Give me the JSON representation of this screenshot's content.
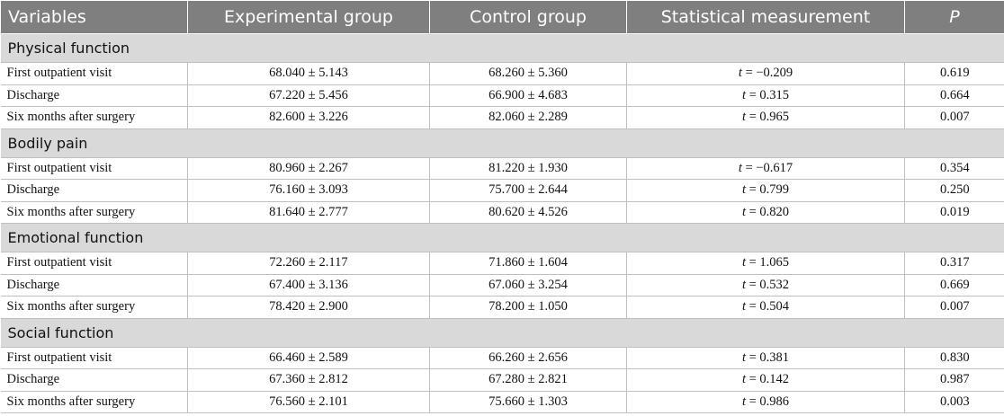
{
  "headers": [
    "Variables",
    "Experimental group",
    "Control group",
    "Statistical measurement",
    "P"
  ],
  "sections": [
    {
      "title": "Physical function",
      "rows": [
        {
          "label": "First outpatient visit",
          "exp": "68.040 ± 5.143",
          "ctrl": "68.260 ± 5.360",
          "stat_var": "t",
          "stat_val": "= −0.209",
          "p": "0.619"
        },
        {
          "label": "Discharge",
          "exp": "67.220 ± 5.456",
          "ctrl": "66.900 ± 4.683",
          "stat_var": "t",
          "stat_val": "= 0.315",
          "p": "0.664"
        },
        {
          "label": "Six months after surgery",
          "exp": "82.600 ± 3.226",
          "ctrl": "82.060 ± 2.289",
          "stat_var": "t",
          "stat_val": "= 0.965",
          "p": "0.007"
        }
      ]
    },
    {
      "title": "Bodily pain",
      "rows": [
        {
          "label": "First outpatient visit",
          "exp": "80.960 ± 2.267",
          "ctrl": "81.220 ± 1.930",
          "stat_var": "t",
          "stat_val": "= −0.617",
          "p": "0.354"
        },
        {
          "label": "Discharge",
          "exp": "76.160 ± 3.093",
          "ctrl": "75.700 ± 2.644",
          "stat_var": "t",
          "stat_val": "= 0.799",
          "p": "0.250"
        },
        {
          "label": "Six months after surgery",
          "exp": "81.640 ± 2.777",
          "ctrl": "80.620 ± 4.526",
          "stat_var": "t",
          "stat_val": "= 0.820",
          "p": "0.019"
        }
      ]
    },
    {
      "title": "Emotional function",
      "rows": [
        {
          "label": "First outpatient visit",
          "exp": "72.260 ± 2.117",
          "ctrl": "71.860 ± 1.604",
          "stat_var": "t",
          "stat_val": "= 1.065",
          "p": "0.317"
        },
        {
          "label": "Discharge",
          "exp": "67.400 ± 3.136",
          "ctrl": "67.060 ± 3.254",
          "stat_var": "t",
          "stat_val": "= 0.532",
          "p": "0.669"
        },
        {
          "label": "Six months after surgery",
          "exp": "78.420 ± 2.900",
          "ctrl": "78.200 ± 1.050",
          "stat_var": "t",
          "stat_val": "= 0.504",
          "p": "0.007"
        }
      ]
    },
    {
      "title": "Social function",
      "rows": [
        {
          "label": "First outpatient visit",
          "exp": "66.460 ± 2.589",
          "ctrl": "66.260 ± 2.656",
          "stat_var": "t",
          "stat_val": "= 0.381",
          "p": "0.830"
        },
        {
          "label": "Discharge",
          "exp": "67.360 ± 2.812",
          "ctrl": "67.280 ± 2.821",
          "stat_var": "t",
          "stat_val": "= 0.142",
          "p": "0.987"
        },
        {
          "label": "Six months after surgery",
          "exp": "76.560 ± 2.101",
          "ctrl": "75.660 ± 1.303",
          "stat_var": "t",
          "stat_val": "= 0.986",
          "p": "0.003"
        }
      ]
    }
  ]
}
